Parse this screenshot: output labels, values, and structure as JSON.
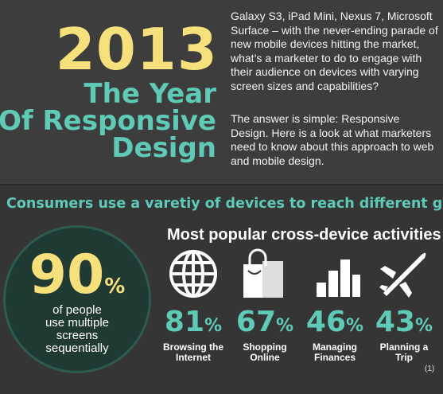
{
  "header": {
    "year": "2013",
    "title_lines": [
      "The Year",
      "Of Responsive",
      "Design"
    ]
  },
  "intro": {
    "paragraphs": [
      "Galaxy S3, iPad Mini, Nexus 7, Microsoft Surface – with the never-ending parade of new mobile devices hitting the market, what’s a marketer to do to engage with their audience on devices with varying screen sizes and capabilities?",
      "The answer is simple: Responsive Design. Here is a look at what marketers need to know about this approach to web and mobile design."
    ]
  },
  "section": {
    "heading": "Consumers use a varetiy of devices to reach different goals",
    "highlight": {
      "value": 90,
      "unit": "%",
      "caption_lines": [
        "of people",
        "use multiple",
        "screens",
        "sequentially"
      ]
    },
    "activities": {
      "title": "Most popular cross-device activities",
      "items": [
        {
          "value": 81,
          "unit": "%",
          "label_lines": [
            "Browsing the",
            "Internet"
          ]
        },
        {
          "value": 67,
          "unit": "%",
          "label_lines": [
            "Shopping",
            "Online"
          ]
        },
        {
          "value": 46,
          "unit": "%",
          "label_lines": [
            "Managing",
            "Finances"
          ]
        },
        {
          "value": 43,
          "unit": "%",
          "label_lines": [
            "Planning a",
            "Trip"
          ]
        }
      ]
    }
  },
  "footnote": "(1)"
}
